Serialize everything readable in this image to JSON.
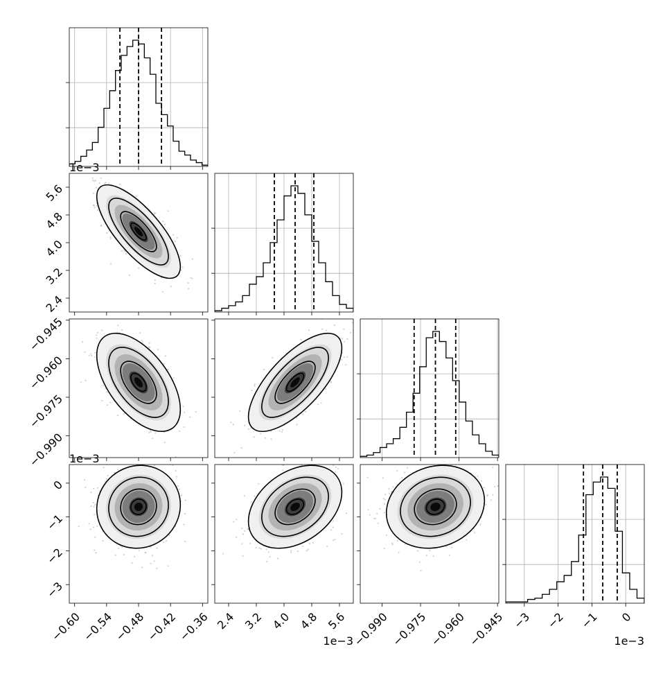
{
  "chart_data": {
    "type": "corner",
    "params": [
      {
        "range": [
          -0.61,
          -0.35
        ],
        "ticks": [
          -0.6,
          -0.54,
          -0.48,
          -0.42,
          -0.36
        ],
        "tick_labels": [
          "−0.60",
          "−0.54",
          "−0.48",
          "−0.42",
          "−0.36"
        ],
        "offset": "",
        "quantiles": [
          -0.515,
          -0.48,
          -0.437
        ],
        "mean": -0.48,
        "sd": 0.032
      },
      {
        "range": [
          2.0,
          6.0
        ],
        "ticks": [
          2.4,
          3.2,
          4.0,
          4.8,
          5.6
        ],
        "tick_labels": [
          "2.4",
          "3.2",
          "4.0",
          "4.8",
          "5.6"
        ],
        "offset": "1e−3",
        "quantiles": [
          3.72,
          4.32,
          4.86
        ],
        "mean": 4.32,
        "sd": 0.55
      },
      {
        "range": [
          -0.9985,
          -0.9445
        ],
        "ticks": [
          -0.99,
          -0.975,
          -0.96,
          -0.945
        ],
        "tick_labels": [
          "−0.990",
          "−0.975",
          "−0.960",
          "−0.945"
        ],
        "offset": "",
        "quantiles": [
          -0.9775,
          -0.9692,
          -0.9613
        ],
        "mean": -0.9692,
        "sd": 0.0078
      },
      {
        "range": [
          -3.55,
          0.55
        ],
        "ticks": [
          -3,
          -2,
          -1,
          0
        ],
        "tick_labels": [
          "−3",
          "−2",
          "−1",
          "0"
        ],
        "offset": "1e−3",
        "quantiles": [
          -1.25,
          -0.68,
          -0.25
        ],
        "mean": -0.7,
        "sd": 0.5
      }
    ],
    "hist_heights": [
      [
        0.02,
        0.04,
        0.08,
        0.13,
        0.19,
        0.31,
        0.46,
        0.6,
        0.76,
        0.88,
        0.95,
        1.0,
        0.97,
        0.86,
        0.73,
        0.5,
        0.41,
        0.32,
        0.2,
        0.12,
        0.09,
        0.05,
        0.03,
        0.01
      ],
      [
        0.01,
        0.03,
        0.05,
        0.08,
        0.13,
        0.22,
        0.28,
        0.39,
        0.55,
        0.73,
        0.92,
        1.0,
        0.94,
        0.77,
        0.56,
        0.39,
        0.24,
        0.13,
        0.06,
        0.03
      ],
      [
        0.01,
        0.02,
        0.04,
        0.08,
        0.11,
        0.15,
        0.24,
        0.36,
        0.51,
        0.72,
        0.95,
        1.0,
        0.92,
        0.79,
        0.61,
        0.44,
        0.29,
        0.18,
        0.11,
        0.05,
        0.02
      ],
      [
        0.01,
        0.01,
        0.01,
        0.03,
        0.04,
        0.07,
        0.11,
        0.17,
        0.22,
        0.33,
        0.54,
        0.86,
        0.96,
        1.0,
        0.91,
        0.57,
        0.24,
        0.11,
        0.04
      ]
    ],
    "correlations": [
      [
        1,
        -0.75,
        -0.55,
        0.05
      ],
      [
        -0.75,
        1,
        0.7,
        0.35
      ],
      [
        -0.55,
        0.7,
        1,
        0.15
      ],
      [
        0.05,
        0.35,
        0.15,
        1
      ]
    ]
  }
}
